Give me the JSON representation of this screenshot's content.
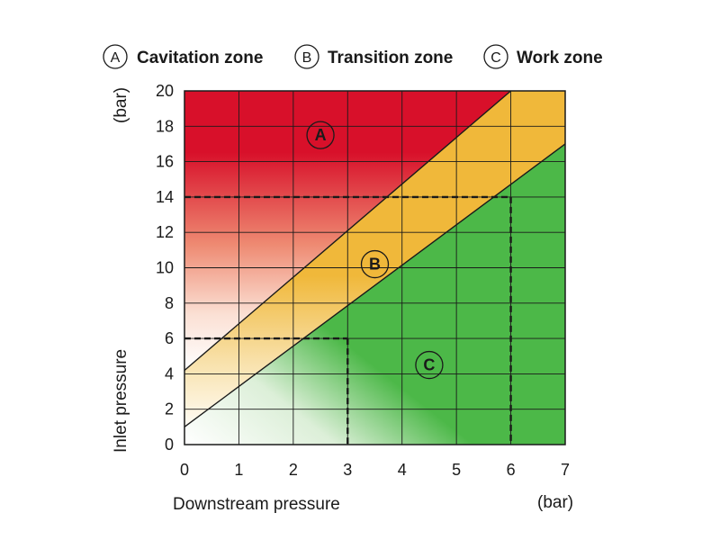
{
  "chart_data": {
    "type": "area",
    "title": "",
    "xlabel": "Downstream pressure",
    "ylabel": "Inlet pressure",
    "x_unit": "(bar)",
    "y_unit": "(bar)",
    "xlim": [
      0,
      7
    ],
    "ylim": [
      0,
      20
    ],
    "xticks": [
      "0",
      "1",
      "2",
      "3",
      "4",
      "5",
      "6",
      "7"
    ],
    "yticks": [
      "0",
      "2",
      "4",
      "6",
      "8",
      "10",
      "12",
      "14",
      "16",
      "18",
      "20"
    ],
    "grid": true,
    "legend_position": "top",
    "legend": [
      {
        "letter": "A",
        "label": "Cavitation zone",
        "color": "#d8102a"
      },
      {
        "letter": "B",
        "label": "Transition zone",
        "color": "#f0b83a"
      },
      {
        "letter": "C",
        "label": "Work zone",
        "color": "#4cb848"
      }
    ],
    "boundaries": [
      {
        "between": "A-B",
        "x": [
          0,
          6
        ],
        "y": [
          4.2,
          20
        ]
      },
      {
        "between": "B-C",
        "x": [
          0,
          7
        ],
        "y": [
          1.0,
          17.0
        ]
      }
    ],
    "zone_labels": [
      {
        "letter": "A",
        "x": 2.5,
        "y": 17.5
      },
      {
        "letter": "B",
        "x": 3.5,
        "y": 10.2
      },
      {
        "letter": "C",
        "x": 4.5,
        "y": 4.5
      }
    ],
    "reference_lines": [
      {
        "x": 3,
        "y": 6
      },
      {
        "x": 6,
        "y": 14
      }
    ]
  }
}
